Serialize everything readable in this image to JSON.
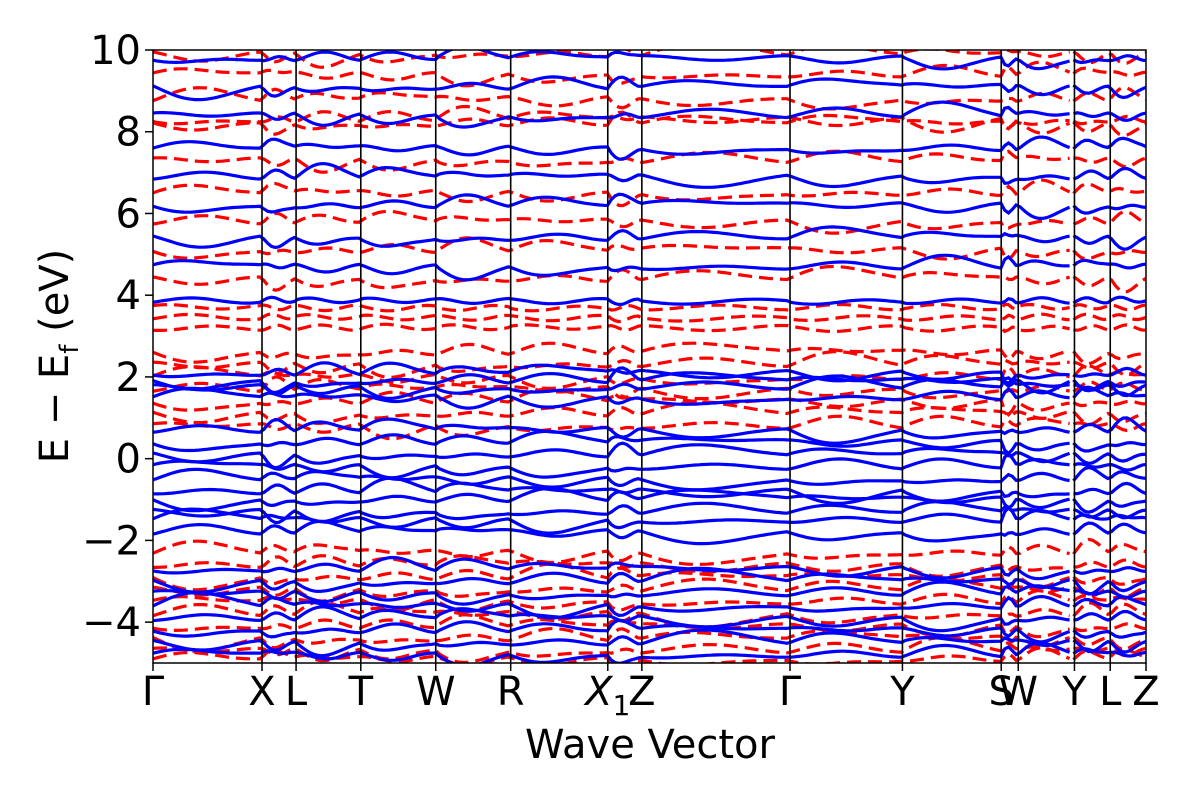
{
  "chart_data": {
    "type": "line",
    "title": "",
    "xlabel": "Wave Vector",
    "ylabel_main": "E − E",
    "ylabel_sub": "f",
    "ylabel_unit": " (eV)",
    "ylim": [
      -5,
      10
    ],
    "y_ticks": [
      {
        "value": -4,
        "label": "−4"
      },
      {
        "value": -2,
        "label": "−2"
      },
      {
        "value": 0,
        "label": "0"
      },
      {
        "value": 2,
        "label": "2"
      },
      {
        "value": 4,
        "label": "4"
      },
      {
        "value": 6,
        "label": "6"
      },
      {
        "value": 8,
        "label": "8"
      },
      {
        "value": 10,
        "label": "10"
      }
    ],
    "xlim": [
      0,
      29.15
    ],
    "k_points": [
      {
        "pos": 0.0,
        "label": "Γ"
      },
      {
        "pos": 3.2,
        "label": "X"
      },
      {
        "pos": 4.2,
        "label": "L"
      },
      {
        "pos": 6.1,
        "label": "T"
      },
      {
        "pos": 8.3,
        "label": "W"
      },
      {
        "pos": 10.5,
        "label": "R"
      },
      {
        "pos": 13.35,
        "label": "X1",
        "sub": "1"
      },
      {
        "pos": 14.35,
        "label": "Z"
      },
      {
        "pos": 18.7,
        "label": "Γ"
      },
      {
        "pos": 22.0,
        "label": "Y"
      },
      {
        "pos": 24.9,
        "label": "S"
      },
      {
        "pos": 25.4,
        "label": "W"
      },
      {
        "pos": 27.05,
        "label": "Y"
      },
      {
        "pos": 28.1,
        "label": "L"
      },
      {
        "pos": 29.15,
        "label": "Z"
      }
    ],
    "segment_breaks": [
      27.05
    ],
    "grid": false,
    "legend": "none",
    "series": [
      {
        "style": "dashed",
        "color": "#ff0000",
        "bands": [
          -4.9,
          -4.7,
          -4.4,
          -4.1,
          -3.8,
          -3.5,
          -3.2,
          -2.9,
          -2.6,
          -2.3,
          0.8,
          1.1,
          1.4,
          1.7,
          2.0,
          2.3,
          2.6,
          3.2,
          3.45,
          3.7,
          4.4,
          5.1,
          5.8,
          6.5,
          7.3,
          8.2,
          8.3,
          8.8,
          9.4,
          9.9
        ]
      },
      {
        "style": "solid",
        "color": "#0000ff",
        "bands": [
          -4.8,
          -4.5,
          -4.2,
          -3.9,
          -3.6,
          -3.3,
          -3.0,
          -2.7,
          -1.8,
          -1.5,
          -1.3,
          -1.0,
          -0.8,
          -0.5,
          -0.2,
          0.1,
          0.4,
          0.7,
          1.5,
          1.75,
          1.9,
          2.1,
          3.86,
          4.7,
          5.4,
          6.2,
          6.9,
          7.6,
          8.4,
          9.1,
          9.8
        ]
      }
    ]
  },
  "colors": {
    "axes": "#000000",
    "background": "#ffffff"
  }
}
